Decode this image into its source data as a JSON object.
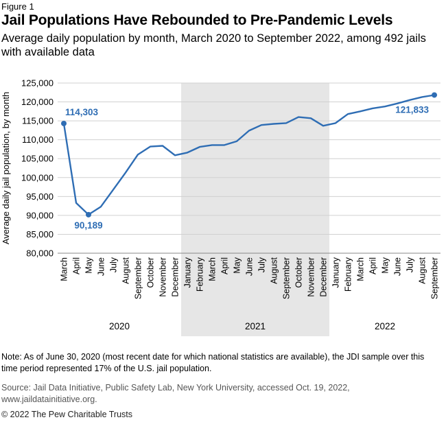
{
  "figure_label": "Figure 1",
  "note": "Note: As of June 30, 2020 (most recent date for which national statistics are available), the JDI sample over this time period represented 17% of the U.S. jail population.",
  "source": "Source: Jail Data Initiative, Public Safety Lab, New York University, accessed Oct. 19, 2022, www.jaildatainitiative.org.",
  "copyright": "© 2022 The Pew Charitable Trusts",
  "colors": {
    "line": "#2e6db4",
    "label": "#2e6db4",
    "shade": "#e6e6e6",
    "grid": "#d0d0d0"
  },
  "chart_data": {
    "type": "line",
    "title": "Jail Populations Have Rebounded to Pre-Pandemic Levels",
    "subtitle": "Average daily population by month, March 2020 to September 2022, among 492 jails with available data",
    "ylabel": "Average daily jail population, by month",
    "xlabel": "",
    "ylim": [
      80000,
      125000
    ],
    "yticks": [
      "80,000",
      "85,000",
      "90,000",
      "95,000",
      "100,000",
      "105,000",
      "110,000",
      "115,000",
      "120,000",
      "125,000"
    ],
    "grid": "horizontal",
    "categories": [
      "March",
      "April",
      "May",
      "June",
      "July",
      "August",
      "September",
      "October",
      "November",
      "December",
      "January",
      "February",
      "March",
      "April",
      "May",
      "June",
      "July",
      "August",
      "September",
      "October",
      "November",
      "December",
      "January",
      "February",
      "March",
      "April",
      "May",
      "June",
      "July",
      "August",
      "September"
    ],
    "values": [
      114303,
      93300,
      90189,
      92300,
      96800,
      101300,
      106100,
      108200,
      108400,
      105900,
      106600,
      108100,
      108600,
      108600,
      109600,
      112400,
      113900,
      114200,
      114400,
      116000,
      115700,
      113700,
      114400,
      116800,
      117500,
      118300,
      118800,
      119600,
      120500,
      121300,
      121833
    ],
    "years": [
      {
        "label": "2020",
        "start": 0,
        "end": 9
      },
      {
        "label": "2021",
        "start": 10,
        "end": 21
      },
      {
        "label": "2022",
        "start": 22,
        "end": 30
      }
    ],
    "shaded_year_index": 1,
    "annotations": [
      {
        "index": 0,
        "text": "114,303",
        "position": "above-right"
      },
      {
        "index": 2,
        "text": "90,189",
        "position": "below"
      },
      {
        "index": 30,
        "text": "121,833",
        "position": "below-left"
      }
    ]
  }
}
